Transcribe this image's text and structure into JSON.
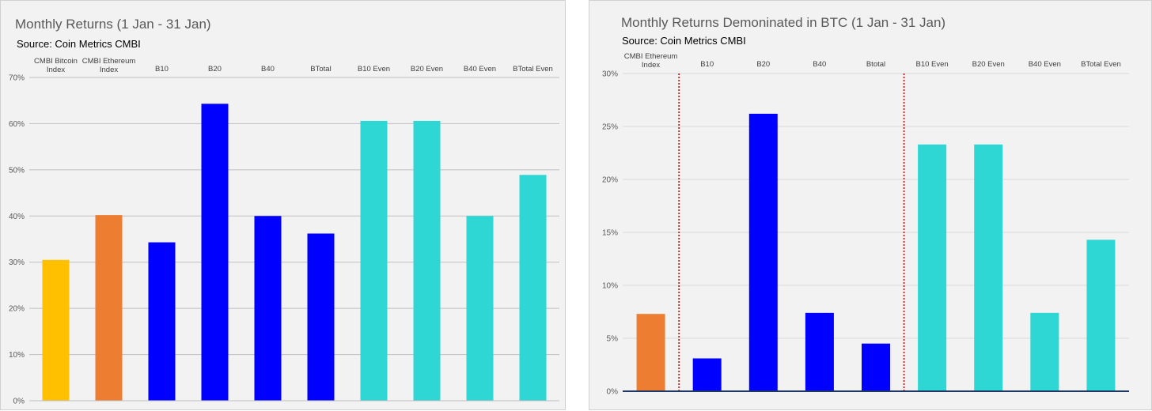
{
  "chart_data": [
    {
      "type": "bar",
      "title": "Monthly Returns (1 Jan - 31 Jan)",
      "subtitle": "Source: Coin Metrics CMBI",
      "categories": [
        "CMBI Bitcoin Index",
        "CMBI Ethereum Index",
        "B10",
        "B20",
        "B40",
        "BTotal",
        "B10 Even",
        "B20 Even",
        "B40 Even",
        "BTotal Even"
      ],
      "values": [
        30.5,
        40.2,
        34.3,
        64.3,
        40.0,
        36.2,
        60.6,
        60.6,
        40.0,
        48.9
      ],
      "colors": [
        "#ffc000",
        "#ed7d31",
        "#0000ff",
        "#0000ff",
        "#0000ff",
        "#0000ff",
        "#2ed6d4",
        "#2ed6d4",
        "#2ed6d4",
        "#2ed6d4"
      ],
      "yticks": [
        "0%",
        "10%",
        "20%",
        "30%",
        "40%",
        "50%",
        "60%",
        "70%"
      ],
      "ylim": [
        0,
        70
      ],
      "grid": true,
      "tick_labels_position": "top"
    },
    {
      "type": "bar",
      "title": "Monthly Returns Demoninated in BTC (1 Jan - 31 Jan)",
      "subtitle": "Source: Coin Metrics CMBI",
      "categories": [
        "CMBI Ethereum Index",
        "B10",
        "B20",
        "B40",
        "Btotal",
        "B10 Even",
        "B20 Even",
        "B40 Even",
        "BTotal Even"
      ],
      "values": [
        7.3,
        3.1,
        26.2,
        7.4,
        4.5,
        23.3,
        23.3,
        7.4,
        14.3
      ],
      "colors": [
        "#ed7d31",
        "#0000ff",
        "#0000ff",
        "#0000ff",
        "#0000ff",
        "#2ed6d4",
        "#2ed6d4",
        "#2ed6d4",
        "#2ed6d4"
      ],
      "yticks": [
        "0%",
        "5%",
        "10%",
        "15%",
        "20%",
        "25%",
        "30%"
      ],
      "ylim": [
        0,
        30
      ],
      "grid": true,
      "tick_labels_position": "top",
      "separator_color": "#c00000"
    }
  ]
}
